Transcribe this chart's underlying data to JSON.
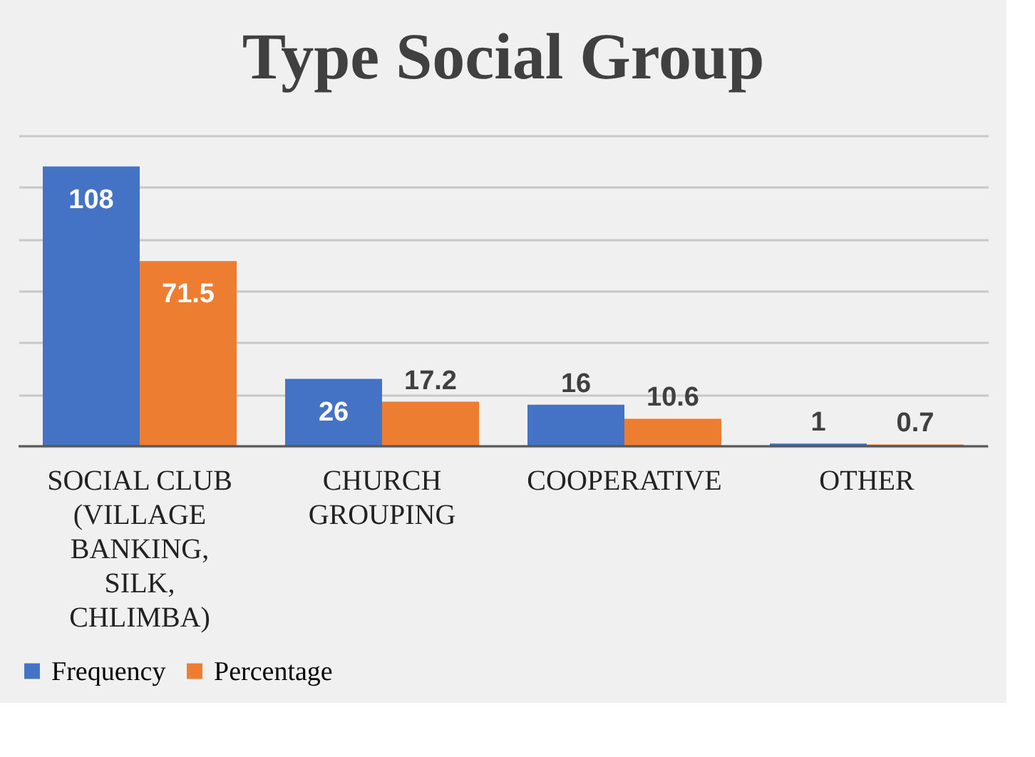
{
  "chart_data": {
    "type": "bar",
    "title": "Type Social Group",
    "categories": [
      "SOCIAL CLUB (VILLAGE BANKING, SILK, CHLIMBA)",
      "CHURCH GROUPING",
      "COOPERATIVE",
      "OTHER"
    ],
    "series": [
      {
        "name": "Frequency",
        "color": "#4472c4",
        "values": [
          108,
          26,
          16,
          1
        ]
      },
      {
        "name": "Percentage",
        "color": "#ed7d31",
        "values": [
          71.5,
          17.2,
          10.6,
          0.7
        ]
      }
    ],
    "ylim": [
      0,
      120
    ],
    "tick_labels": "x",
    "grid": "y",
    "legend": "bottom",
    "data_labels": true
  }
}
